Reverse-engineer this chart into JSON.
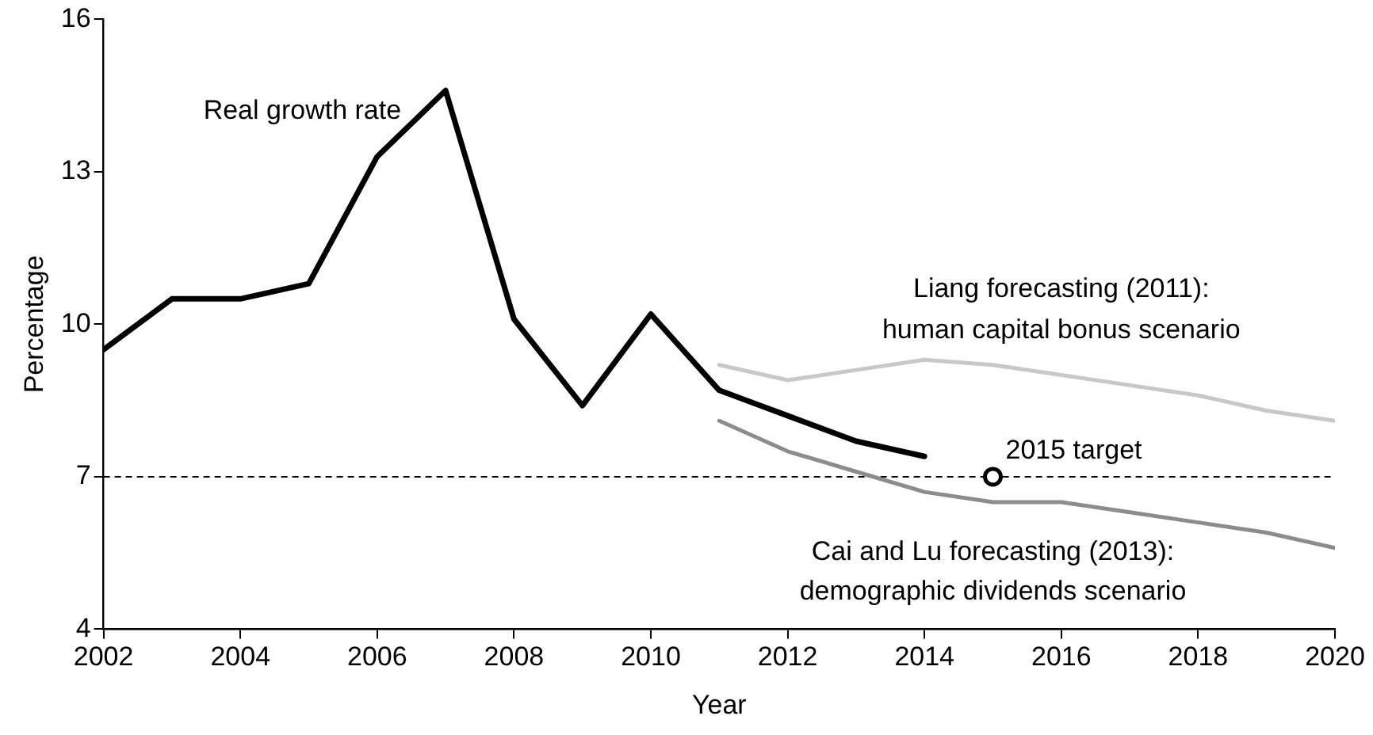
{
  "chart_data": {
    "type": "line",
    "xlabel": "Year",
    "ylabel": "Percentage",
    "xlim": [
      2002,
      2020
    ],
    "xticks": [
      2002,
      2004,
      2006,
      2008,
      2010,
      2012,
      2014,
      2016,
      2018,
      2020
    ],
    "ylim": [
      4,
      16
    ],
    "yticks": [
      4,
      7,
      10,
      13,
      16
    ],
    "marker": "none",
    "line_style": "solid",
    "series": [
      {
        "name": "Real growth rate",
        "color": "#000000",
        "x": [
          2002,
          2003,
          2004,
          2005,
          2006,
          2007,
          2008,
          2009,
          2010,
          2011,
          2012,
          2013,
          2014
        ],
        "values": [
          9.5,
          10.5,
          10.5,
          10.8,
          13.3,
          14.6,
          10.1,
          8.4,
          10.2,
          8.7,
          8.2,
          7.7,
          7.4
        ]
      },
      {
        "name": "Liang forecasting (2011): human capital bonus scenario",
        "color": "#c8c8c8",
        "x": [
          2011,
          2012,
          2013,
          2014,
          2015,
          2016,
          2017,
          2018,
          2019,
          2020
        ],
        "values": [
          9.2,
          8.9,
          9.1,
          9.3,
          9.2,
          9.0,
          8.8,
          8.6,
          8.3,
          8.1
        ]
      },
      {
        "name": "Cai and Lu forecasting (2013): demographic dividends scenario",
        "color": "#8c8c8c",
        "x": [
          2011,
          2012,
          2013,
          2014,
          2015,
          2016,
          2017,
          2018,
          2019,
          2020
        ],
        "values": [
          8.1,
          7.5,
          7.1,
          6.7,
          6.5,
          6.5,
          6.3,
          6.1,
          5.9,
          5.6
        ]
      },
      {
        "type": "scatter",
        "color": "#000000",
        "marker": "circle",
        "x": [
          2015
        ],
        "values": [
          7
        ]
      }
    ],
    "ref_lines": [
      {
        "axis": "y",
        "value": 7,
        "color": "#000000",
        "line_style": "dashed"
      }
    ],
    "annotations": [
      {
        "text": "2015 target",
        "x": 2015,
        "y": 7
      }
    ]
  }
}
